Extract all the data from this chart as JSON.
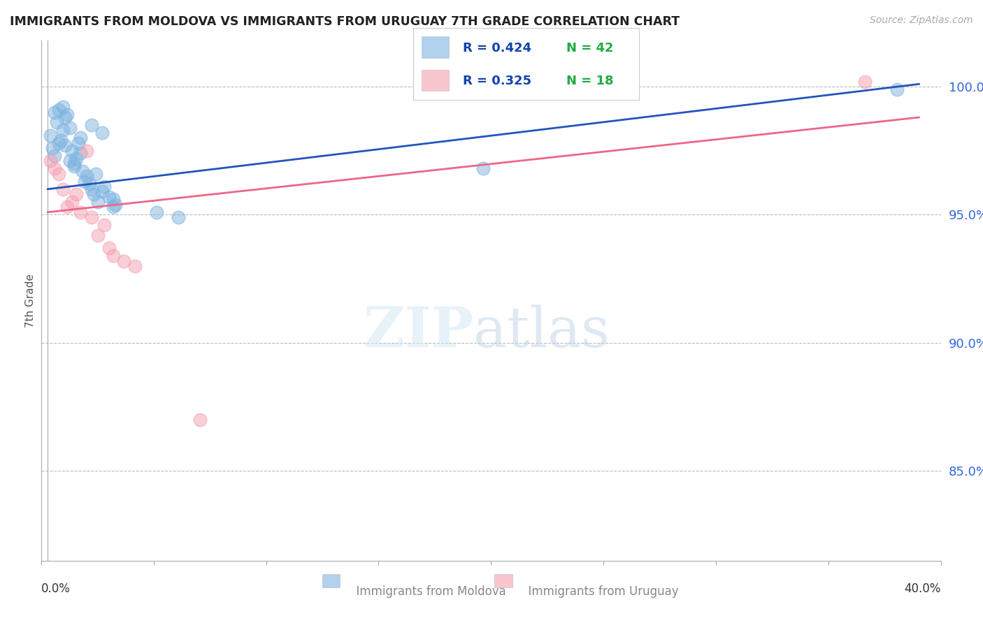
{
  "title": "IMMIGRANTS FROM MOLDOVA VS IMMIGRANTS FROM URUGUAY 7TH GRADE CORRELATION CHART",
  "source": "Source: ZipAtlas.com",
  "ylabel": "7th Grade",
  "y_tick_labels": [
    "85.0%",
    "90.0%",
    "95.0%",
    "100.0%"
  ],
  "y_tick_values": [
    0.85,
    0.9,
    0.95,
    1.0
  ],
  "xlim": [
    -0.003,
    0.41
  ],
  "ylim": [
    0.815,
    1.018
  ],
  "legend_blue_r": "R = 0.424",
  "legend_blue_n": "N = 42",
  "legend_pink_r": "R = 0.325",
  "legend_pink_n": "N = 18",
  "moldova_color": "#7EB3E0",
  "uruguay_color": "#F5A0B0",
  "blue_line_color": "#2255BB",
  "pink_line_color": "#EE6688",
  "legend_r_color": "#1144AA",
  "legend_n_color": "#22AA44",
  "ytick_color": "#3366DD",
  "moldova_x": [
    0.001,
    0.002,
    0.003,
    0.003,
    0.004,
    0.005,
    0.005,
    0.006,
    0.007,
    0.007,
    0.008,
    0.008,
    0.009,
    0.01,
    0.01,
    0.011,
    0.012,
    0.012,
    0.013,
    0.014,
    0.015,
    0.015,
    0.016,
    0.017,
    0.018,
    0.019,
    0.02,
    0.021,
    0.022,
    0.023,
    0.025,
    0.026,
    0.028,
    0.03,
    0.03,
    0.031,
    0.05,
    0.06,
    0.2,
    0.39,
    0.02,
    0.025
  ],
  "moldova_y": [
    0.981,
    0.976,
    0.973,
    0.99,
    0.986,
    0.991,
    0.978,
    0.979,
    0.983,
    0.992,
    0.977,
    0.988,
    0.989,
    0.984,
    0.971,
    0.975,
    0.97,
    0.969,
    0.972,
    0.978,
    0.98,
    0.974,
    0.967,
    0.963,
    0.965,
    0.962,
    0.96,
    0.958,
    0.966,
    0.955,
    0.959,
    0.961,
    0.957,
    0.956,
    0.953,
    0.954,
    0.951,
    0.949,
    0.968,
    0.999,
    0.985,
    0.982
  ],
  "uruguay_x": [
    0.001,
    0.003,
    0.005,
    0.007,
    0.009,
    0.011,
    0.013,
    0.015,
    0.018,
    0.02,
    0.023,
    0.026,
    0.028,
    0.03,
    0.035,
    0.04,
    0.07,
    0.375
  ],
  "uruguay_y": [
    0.971,
    0.968,
    0.966,
    0.96,
    0.953,
    0.955,
    0.958,
    0.951,
    0.975,
    0.949,
    0.942,
    0.946,
    0.937,
    0.934,
    0.932,
    0.93,
    0.87,
    1.002
  ],
  "blue_line_x": [
    0.0,
    0.4
  ],
  "blue_line_y": [
    0.96,
    1.001
  ],
  "pink_line_x": [
    0.0,
    0.4
  ],
  "pink_line_y": [
    0.951,
    0.988
  ]
}
